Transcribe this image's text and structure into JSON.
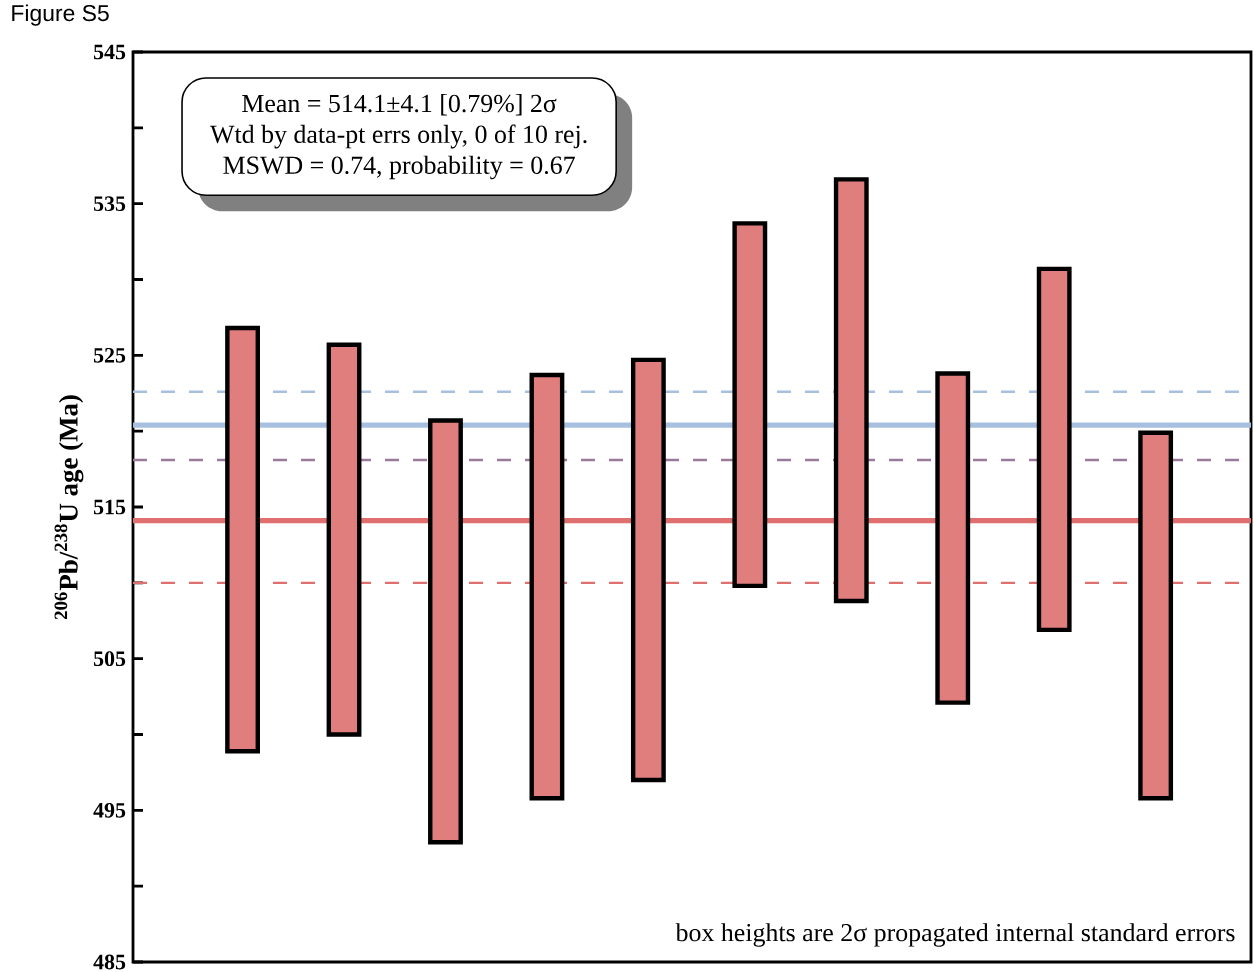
{
  "chart_data": {
    "type": "bar",
    "title": "Figure S5",
    "ylabel": "$^{206}$Pb/$^{238}$U age (Ma)",
    "categories": [
      null,
      null,
      null,
      null,
      null,
      null,
      null,
      null,
      null,
      null
    ],
    "values": [
      27.9,
      25.7,
      27.8,
      27.9,
      27.7,
      23.9,
      27.8,
      21.7,
      23.8,
      24.1
    ],
    "base": [
      498.9,
      500.0,
      492.9,
      495.8,
      497.0,
      509.8,
      508.8,
      502.1,
      506.9,
      495.8
    ],
    "color": "#e07e7e",
    "ylim": [
      485,
      545
    ],
    "yticks": [
      485,
      {
        "value": 490,
        "label": null
      },
      495,
      {
        "value": 500,
        "label": null
      },
      505,
      {
        "value": 510,
        "label": null
      },
      515,
      {
        "value": 520,
        "label": null
      },
      525,
      {
        "value": 530,
        "label": null
      },
      535,
      {
        "value": 540,
        "label": null
      },
      545
    ],
    "ref_lines": [
      {
        "axis": "y",
        "value": 514.1,
        "label": null,
        "color": "#e07070",
        "line_style": "solid"
      },
      {
        "axis": "y",
        "value": 510.0,
        "label": null,
        "color": "#e07070",
        "line_style": "dashed"
      },
      {
        "axis": "y",
        "value": 518.1,
        "label": null,
        "color": "#9a7a9a",
        "line_style": "dashed"
      },
      {
        "axis": "y",
        "value": 520.4,
        "label": null,
        "color": "#a8c0e0",
        "line_style": "solid"
      },
      {
        "axis": "y",
        "value": 522.6,
        "label": null,
        "color": "#a8c0e0",
        "line_style": "dashed"
      }
    ],
    "annotations": [
      "Mean = 514.1±4.1  [0.79%]  2σ",
      "Wtd by data-pt errs only,  0 of 10 rej.",
      "MSWD = 0.74, probability  = 0.67",
      "box heights  are 2σ propagated internal  standard errors"
    ]
  }
}
